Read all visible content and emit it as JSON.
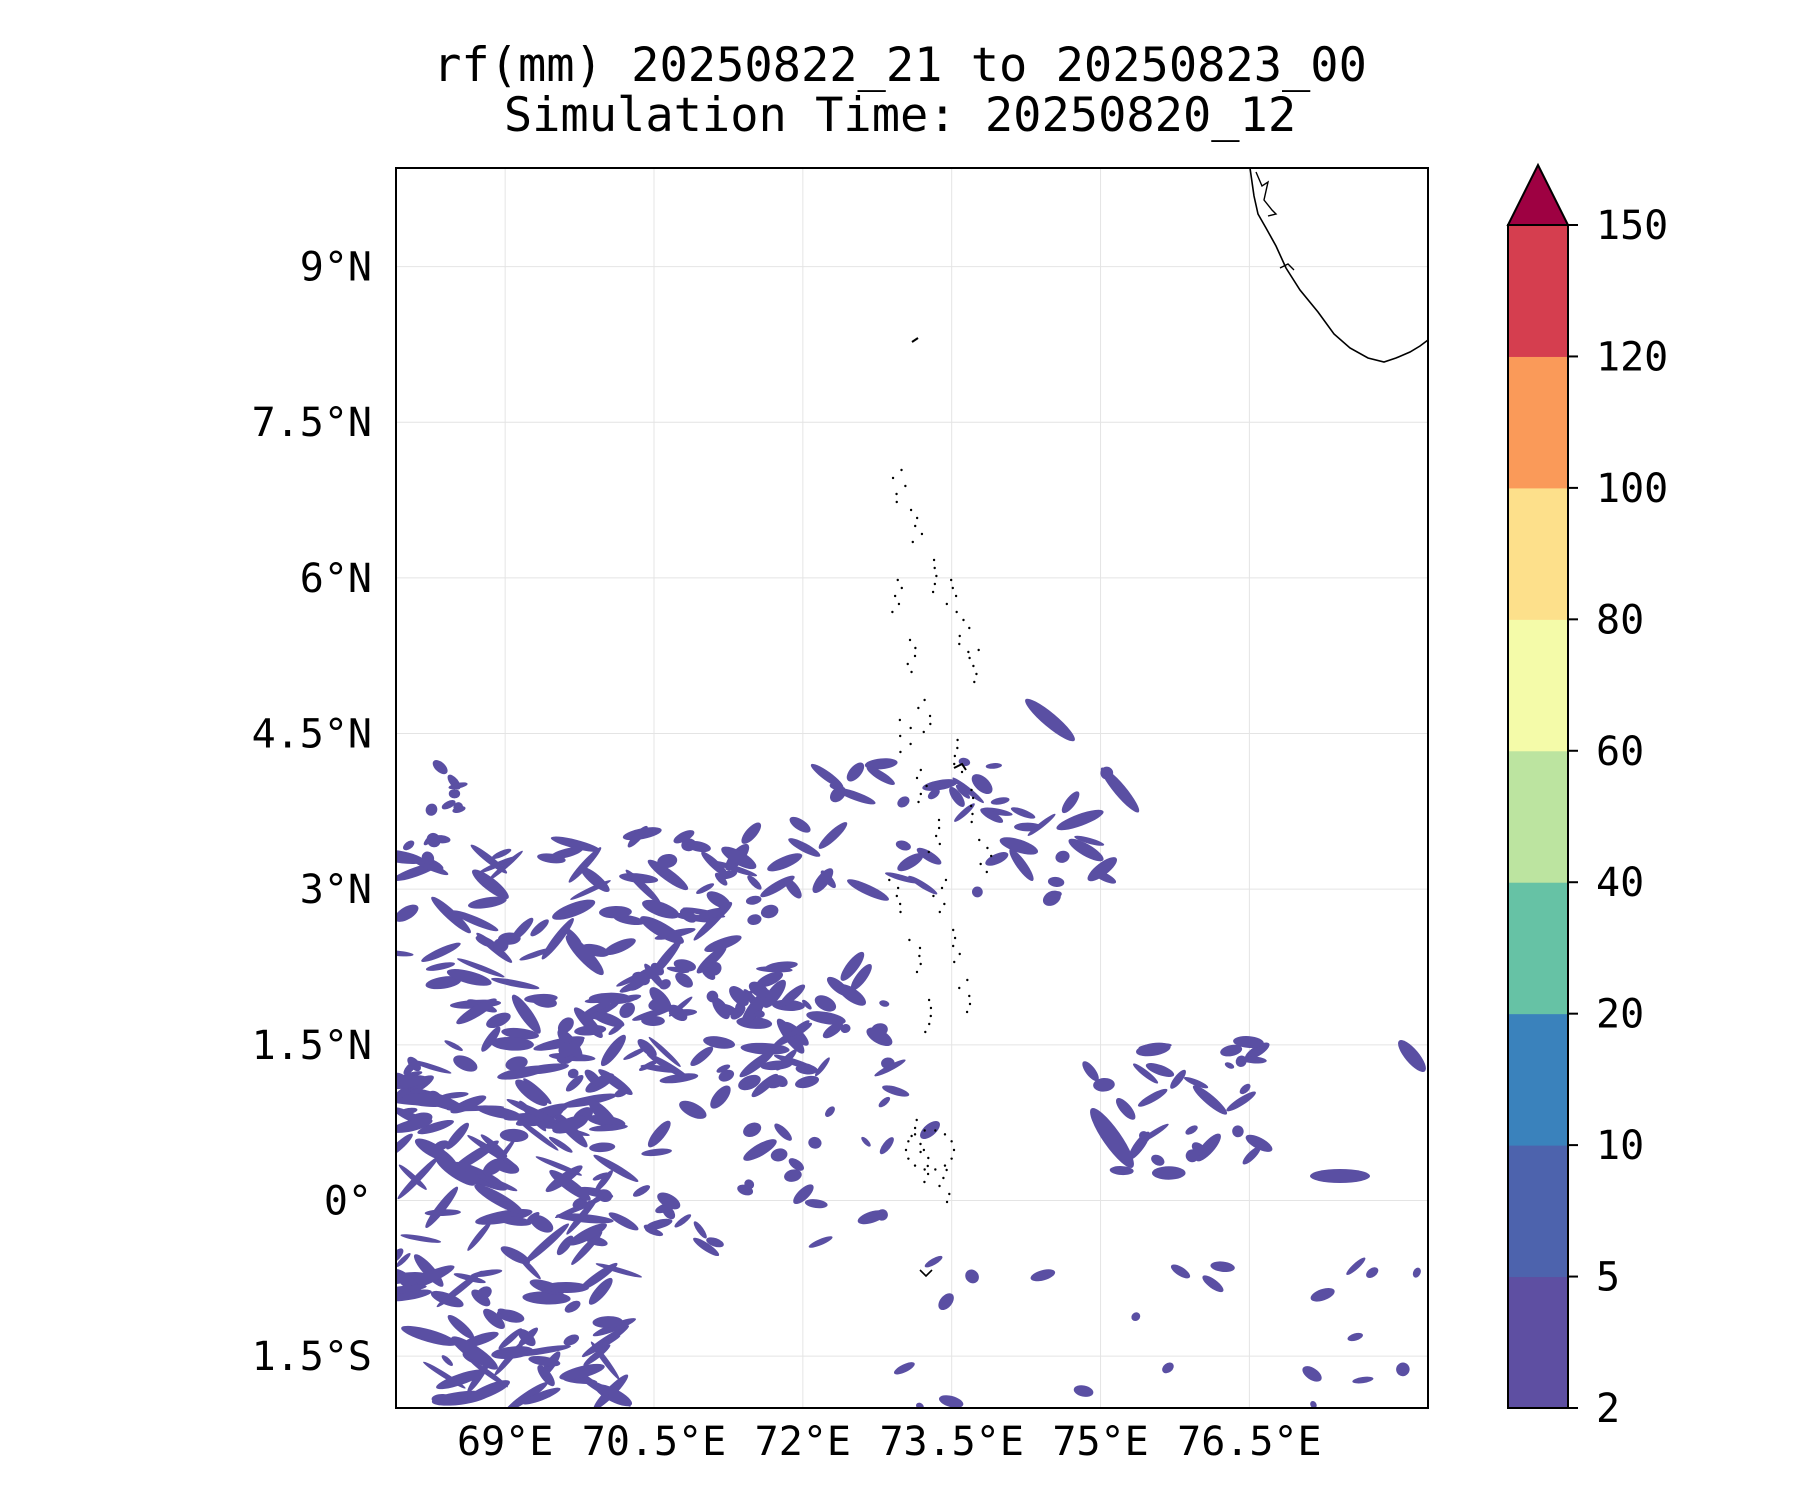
{
  "map": {
    "title_line1": "rf(mm) 20250822_21 to 20250823_00",
    "title_line2": "Simulation Time: 20250820_12",
    "extent": {
      "lon_min": 67.9,
      "lon_max": 78.3,
      "lat_min": -2.0,
      "lat_max": 9.95
    },
    "lon_ticks": [
      {
        "value": 69.0,
        "label": "69°E"
      },
      {
        "value": 70.5,
        "label": "70.5°E"
      },
      {
        "value": 72.0,
        "label": "72°E"
      },
      {
        "value": 73.5,
        "label": "73.5°E"
      },
      {
        "value": 75.0,
        "label": "75°E"
      },
      {
        "value": 76.5,
        "label": "76.5°E"
      }
    ],
    "lat_ticks": [
      {
        "value": 9.0,
        "label": "9°N"
      },
      {
        "value": 7.5,
        "label": "7.5°N"
      },
      {
        "value": 6.0,
        "label": "6°N"
      },
      {
        "value": 4.5,
        "label": "4.5°N"
      },
      {
        "value": 3.0,
        "label": "3°N"
      },
      {
        "value": 1.5,
        "label": "1.5°N"
      },
      {
        "value": 0.0,
        "label": "0°"
      },
      {
        "value": -1.5,
        "label": "1.5°S"
      }
    ],
    "gridlines": true,
    "rain_color": "#5a4fa3"
  },
  "colorbar": {
    "levels": [
      2,
      5,
      10,
      20,
      40,
      60,
      80,
      100,
      120,
      150
    ],
    "labels": [
      "2",
      "5",
      "10",
      "20",
      "40",
      "60",
      "80",
      "100",
      "120",
      "150"
    ],
    "colors": [
      "#5e4fa2",
      "#4d63ad",
      "#3a82bc",
      "#66c2a5",
      "#bce4a0",
      "#f4fba9",
      "#fde08b",
      "#fa9a59",
      "#d53e4f"
    ],
    "extend_color": "#9e0142",
    "extend": "max"
  }
}
